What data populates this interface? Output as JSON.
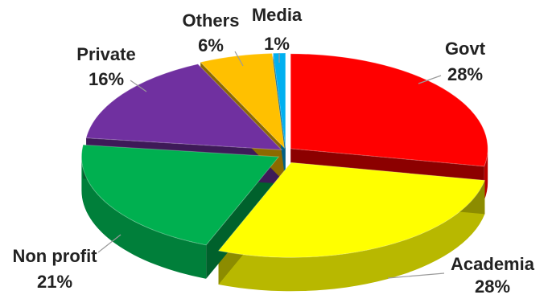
{
  "chart_data": {
    "type": "pie",
    "title": "",
    "style": "3d-exploded",
    "slices": [
      {
        "name": "Govt",
        "label": "Govt",
        "pct_label": "28%",
        "value": 28,
        "color": "#ff0000"
      },
      {
        "name": "Academia",
        "label": "Academia",
        "pct_label": "28%",
        "value": 28,
        "color": "#ffff00"
      },
      {
        "name": "Non profit",
        "label": "Non profit",
        "pct_label": "21%",
        "value": 21,
        "color": "#00b050"
      },
      {
        "name": "Private",
        "label": "Private",
        "pct_label": "16%",
        "value": 16,
        "color": "#7030a0"
      },
      {
        "name": "Others",
        "label": "Others",
        "pct_label": "6%",
        "value": 6,
        "color": "#ffc000"
      },
      {
        "name": "Media",
        "label": "Media",
        "pct_label": "1%",
        "value": 1,
        "color": "#00b0f0"
      }
    ]
  }
}
